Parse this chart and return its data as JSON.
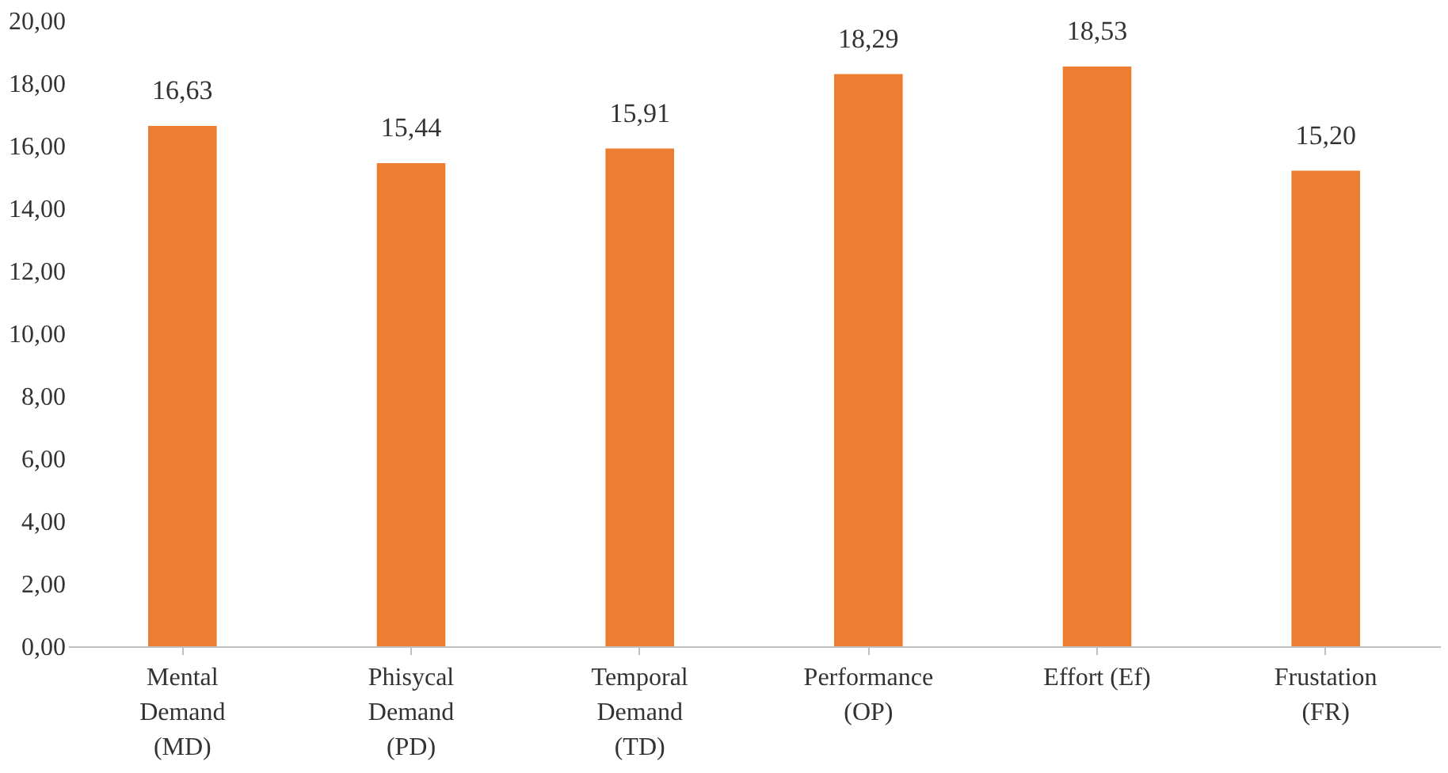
{
  "chart_data": {
    "type": "bar",
    "categories": [
      "Mental Demand (MD)",
      "Phisycal Demand (PD)",
      "Temporal Demand (TD)",
      "Performance (OP)",
      "Effort (Ef)",
      "Frustation (FR)"
    ],
    "values": [
      16.63,
      15.44,
      15.91,
      18.29,
      18.53,
      15.2
    ],
    "value_labels": [
      "16,63",
      "15,44",
      "15,91",
      "18,29",
      "18,53",
      "15,20"
    ],
    "color": "#ed7d31",
    "ylim": [
      0,
      20
    ],
    "yticks": [
      {
        "value": 0,
        "label": "0,00"
      },
      {
        "value": 2,
        "label": "2,00"
      },
      {
        "value": 4,
        "label": "4,00"
      },
      {
        "value": 6,
        "label": "6,00"
      },
      {
        "value": 8,
        "label": "8,00"
      },
      {
        "value": 10,
        "label": "10,00"
      },
      {
        "value": 12,
        "label": "12,00"
      },
      {
        "value": 14,
        "label": "14,00"
      },
      {
        "value": 16,
        "label": "16,00"
      },
      {
        "value": 18,
        "label": "18,00"
      },
      {
        "value": 20,
        "label": "20,00"
      }
    ],
    "grid": false
  }
}
